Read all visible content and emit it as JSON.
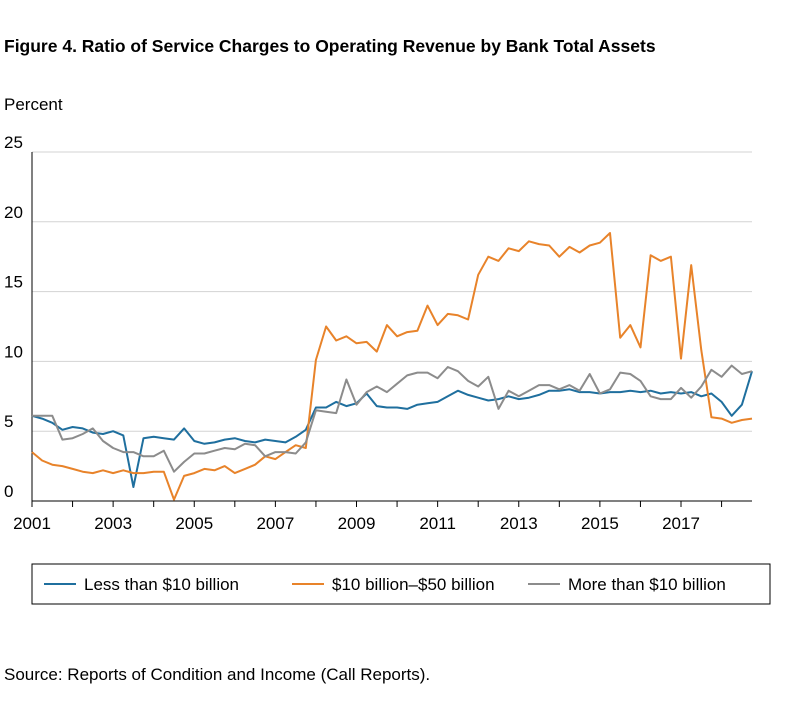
{
  "title": "Figure 4. Ratio of Service Charges to Operating Revenue by Bank Total Assets",
  "source": "Source: Reports of Condition and Income (Call Reports).",
  "chart_data": {
    "type": "line",
    "ylabel": "Percent",
    "xlabel": "",
    "ylim": [
      0,
      25
    ],
    "xlim": [
      2001,
      2018.75
    ],
    "yticks": [
      "0",
      "5",
      "10",
      "15",
      "20",
      "25"
    ],
    "xticks": [
      "2001",
      "2003",
      "2005",
      "2007",
      "2009",
      "2011",
      "2013",
      "2015",
      "2017"
    ],
    "grid": true,
    "legend_position": "bottom",
    "x": [
      2001,
      2001.25,
      2001.5,
      2001.75,
      2002,
      2002.25,
      2002.5,
      2002.75,
      2003,
      2003.25,
      2003.5,
      2003.75,
      2004,
      2004.25,
      2004.5,
      2004.75,
      2005,
      2005.25,
      2005.5,
      2005.75,
      2006,
      2006.25,
      2006.5,
      2006.75,
      2007,
      2007.25,
      2007.5,
      2007.75,
      2008,
      2008.25,
      2008.5,
      2008.75,
      2009,
      2009.25,
      2009.5,
      2009.75,
      2010,
      2010.25,
      2010.5,
      2010.75,
      2011,
      2011.25,
      2011.5,
      2011.75,
      2012,
      2012.25,
      2012.5,
      2012.75,
      2013,
      2013.25,
      2013.5,
      2013.75,
      2014,
      2014.25,
      2014.5,
      2014.75,
      2015,
      2015.25,
      2015.5,
      2015.75,
      2016,
      2016.25,
      2016.5,
      2016.75,
      2017,
      2017.25,
      2017.5,
      2017.75,
      2018,
      2018.25,
      2018.5,
      2018.75
    ],
    "series": [
      {
        "name": "Less than $10 billion",
        "color": "#1f6f9e",
        "values": [
          6.1,
          5.9,
          5.6,
          5.1,
          5.3,
          5.2,
          4.9,
          4.8,
          5.0,
          4.7,
          1.0,
          4.5,
          4.6,
          4.5,
          4.4,
          5.2,
          4.3,
          4.1,
          4.2,
          4.4,
          4.5,
          4.3,
          4.2,
          4.4,
          4.3,
          4.2,
          4.6,
          5.1,
          6.7,
          6.7,
          7.1,
          6.8,
          7.0,
          7.7,
          6.8,
          6.7,
          6.7,
          6.6,
          6.9,
          7.0,
          7.1,
          7.5,
          7.9,
          7.6,
          7.4,
          7.2,
          7.3,
          7.5,
          7.3,
          7.4,
          7.6,
          7.9,
          7.9,
          8.0,
          7.8,
          7.8,
          7.7,
          7.8,
          7.8,
          7.9,
          7.8,
          7.9,
          7.7,
          7.8,
          7.7,
          7.8,
          7.5,
          7.7,
          7.1,
          6.1,
          6.9,
          9.3
        ]
      },
      {
        "name": "$10 billion–$50 billion",
        "color": "#e8832a",
        "values": [
          3.5,
          2.9,
          2.6,
          2.5,
          2.3,
          2.1,
          2.0,
          2.2,
          2.0,
          2.2,
          2.0,
          2.0,
          2.1,
          2.1,
          0.1,
          1.8,
          2.0,
          2.3,
          2.2,
          2.5,
          2.0,
          2.3,
          2.6,
          3.2,
          3.0,
          3.5,
          4.0,
          3.8,
          10.1,
          12.5,
          11.5,
          11.8,
          11.3,
          11.4,
          10.7,
          12.6,
          11.8,
          12.1,
          12.2,
          14.0,
          12.6,
          13.4,
          13.3,
          13.0,
          16.2,
          17.5,
          17.2,
          18.1,
          17.9,
          18.6,
          18.4,
          18.3,
          17.5,
          18.2,
          17.8,
          18.3,
          18.5,
          19.2,
          11.7,
          12.6,
          11.0,
          17.6,
          17.2,
          17.5,
          10.2,
          16.9,
          10.8,
          6.0,
          5.9,
          5.6,
          5.8,
          5.9
        ]
      },
      {
        "name": "More than $10 billion",
        "color": "#8c8c8c",
        "values": [
          6.1,
          6.1,
          6.1,
          4.4,
          4.5,
          4.8,
          5.2,
          4.3,
          3.8,
          3.5,
          3.5,
          3.2,
          3.2,
          3.6,
          2.1,
          2.8,
          3.4,
          3.4,
          3.6,
          3.8,
          3.7,
          4.1,
          4.0,
          3.2,
          3.5,
          3.5,
          3.4,
          4.2,
          6.5,
          6.4,
          6.3,
          8.7,
          6.9,
          7.8,
          8.2,
          7.8,
          8.4,
          9.0,
          9.2,
          9.2,
          8.8,
          9.6,
          9.3,
          8.6,
          8.2,
          8.9,
          6.6,
          7.9,
          7.5,
          7.9,
          8.3,
          8.3,
          8.0,
          8.3,
          7.9,
          9.1,
          7.7,
          8.0,
          9.2,
          9.1,
          8.6,
          7.5,
          7.3,
          7.3,
          8.1,
          7.4,
          8.2,
          9.4,
          8.9,
          9.7,
          9.1,
          9.3
        ]
      }
    ]
  },
  "legend": [
    {
      "label": "Less than $10 billion",
      "color": "#1f6f9e"
    },
    {
      "label": "$10 billion–$50 billion",
      "color": "#e8832a"
    },
    {
      "label": "More than $10 billion",
      "color": "#8c8c8c"
    }
  ]
}
